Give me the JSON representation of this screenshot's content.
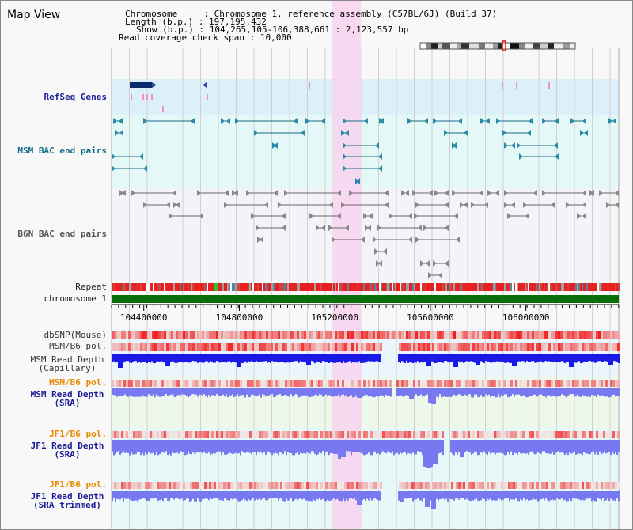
{
  "header": {
    "title": "Map View",
    "chromosome_label": "Chromosome",
    "chromosome_value": "Chromosome 1, reference assembly (C57BL/6J) (Build 37)",
    "length_label": "Length (b.p.)",
    "length_value": "197,195,432",
    "show_label": "Show (b.p.)",
    "show_value": "104,265,105-106,388,661 : 2,123,557 bp",
    "coverage_label": "Read coverage check span",
    "coverage_value": "10,000"
  },
  "tracks": {
    "refseq": "RefSeq Genes",
    "msm_bac": "MSM BAC end pairs",
    "b6n_bac": "B6N BAC end pairs",
    "repeat": "Repeat",
    "chromosome": "chromosome 1",
    "dbsnp": "dbSNP(Mouse)",
    "msm_b6_pol_1": "MSM/B6 pol.",
    "msm_depth_cap_1": "MSM Read Depth",
    "msm_depth_cap_2": "(Capillary)",
    "msm_b6_pol_2": "MSM/B6 pol.",
    "msm_depth_sra_1": "MSM Read Depth",
    "msm_depth_sra_2": "(SRA)",
    "jf1_b6_pol_1": "JF1/B6 pol.",
    "jf1_depth_sra_1": "JF1 Read Depth",
    "jf1_depth_sra_2": "(SRA)",
    "jf1_b6_pol_2": "JF1/B6 pol.",
    "jf1_depth_trim_1": "JF1 Read Depth",
    "jf1_depth_trim_2": "(SRA trimmed)"
  },
  "axis": {
    "ticks": [
      "104400000",
      "104800000",
      "105200000",
      "105600000",
      "106000000"
    ],
    "tick_values": [
      104400000,
      104800000,
      105200000,
      105600000,
      106000000
    ],
    "range": [
      104265105,
      106388661
    ]
  },
  "highlight_range": [
    105190000,
    105310000
  ],
  "colors": {
    "highlight": "#f8d4f0",
    "refseq_bg": "#dcf0fa",
    "msm_bg": "#e4f8f8",
    "b6n_bg": "#f4f4f8",
    "sra_bg": "#eef8ea",
    "chrom_bar": "#0a6e0a",
    "depth_dark": "#1a1ae8",
    "depth_light": "#7878f0",
    "snp_red": "#e82020"
  }
}
